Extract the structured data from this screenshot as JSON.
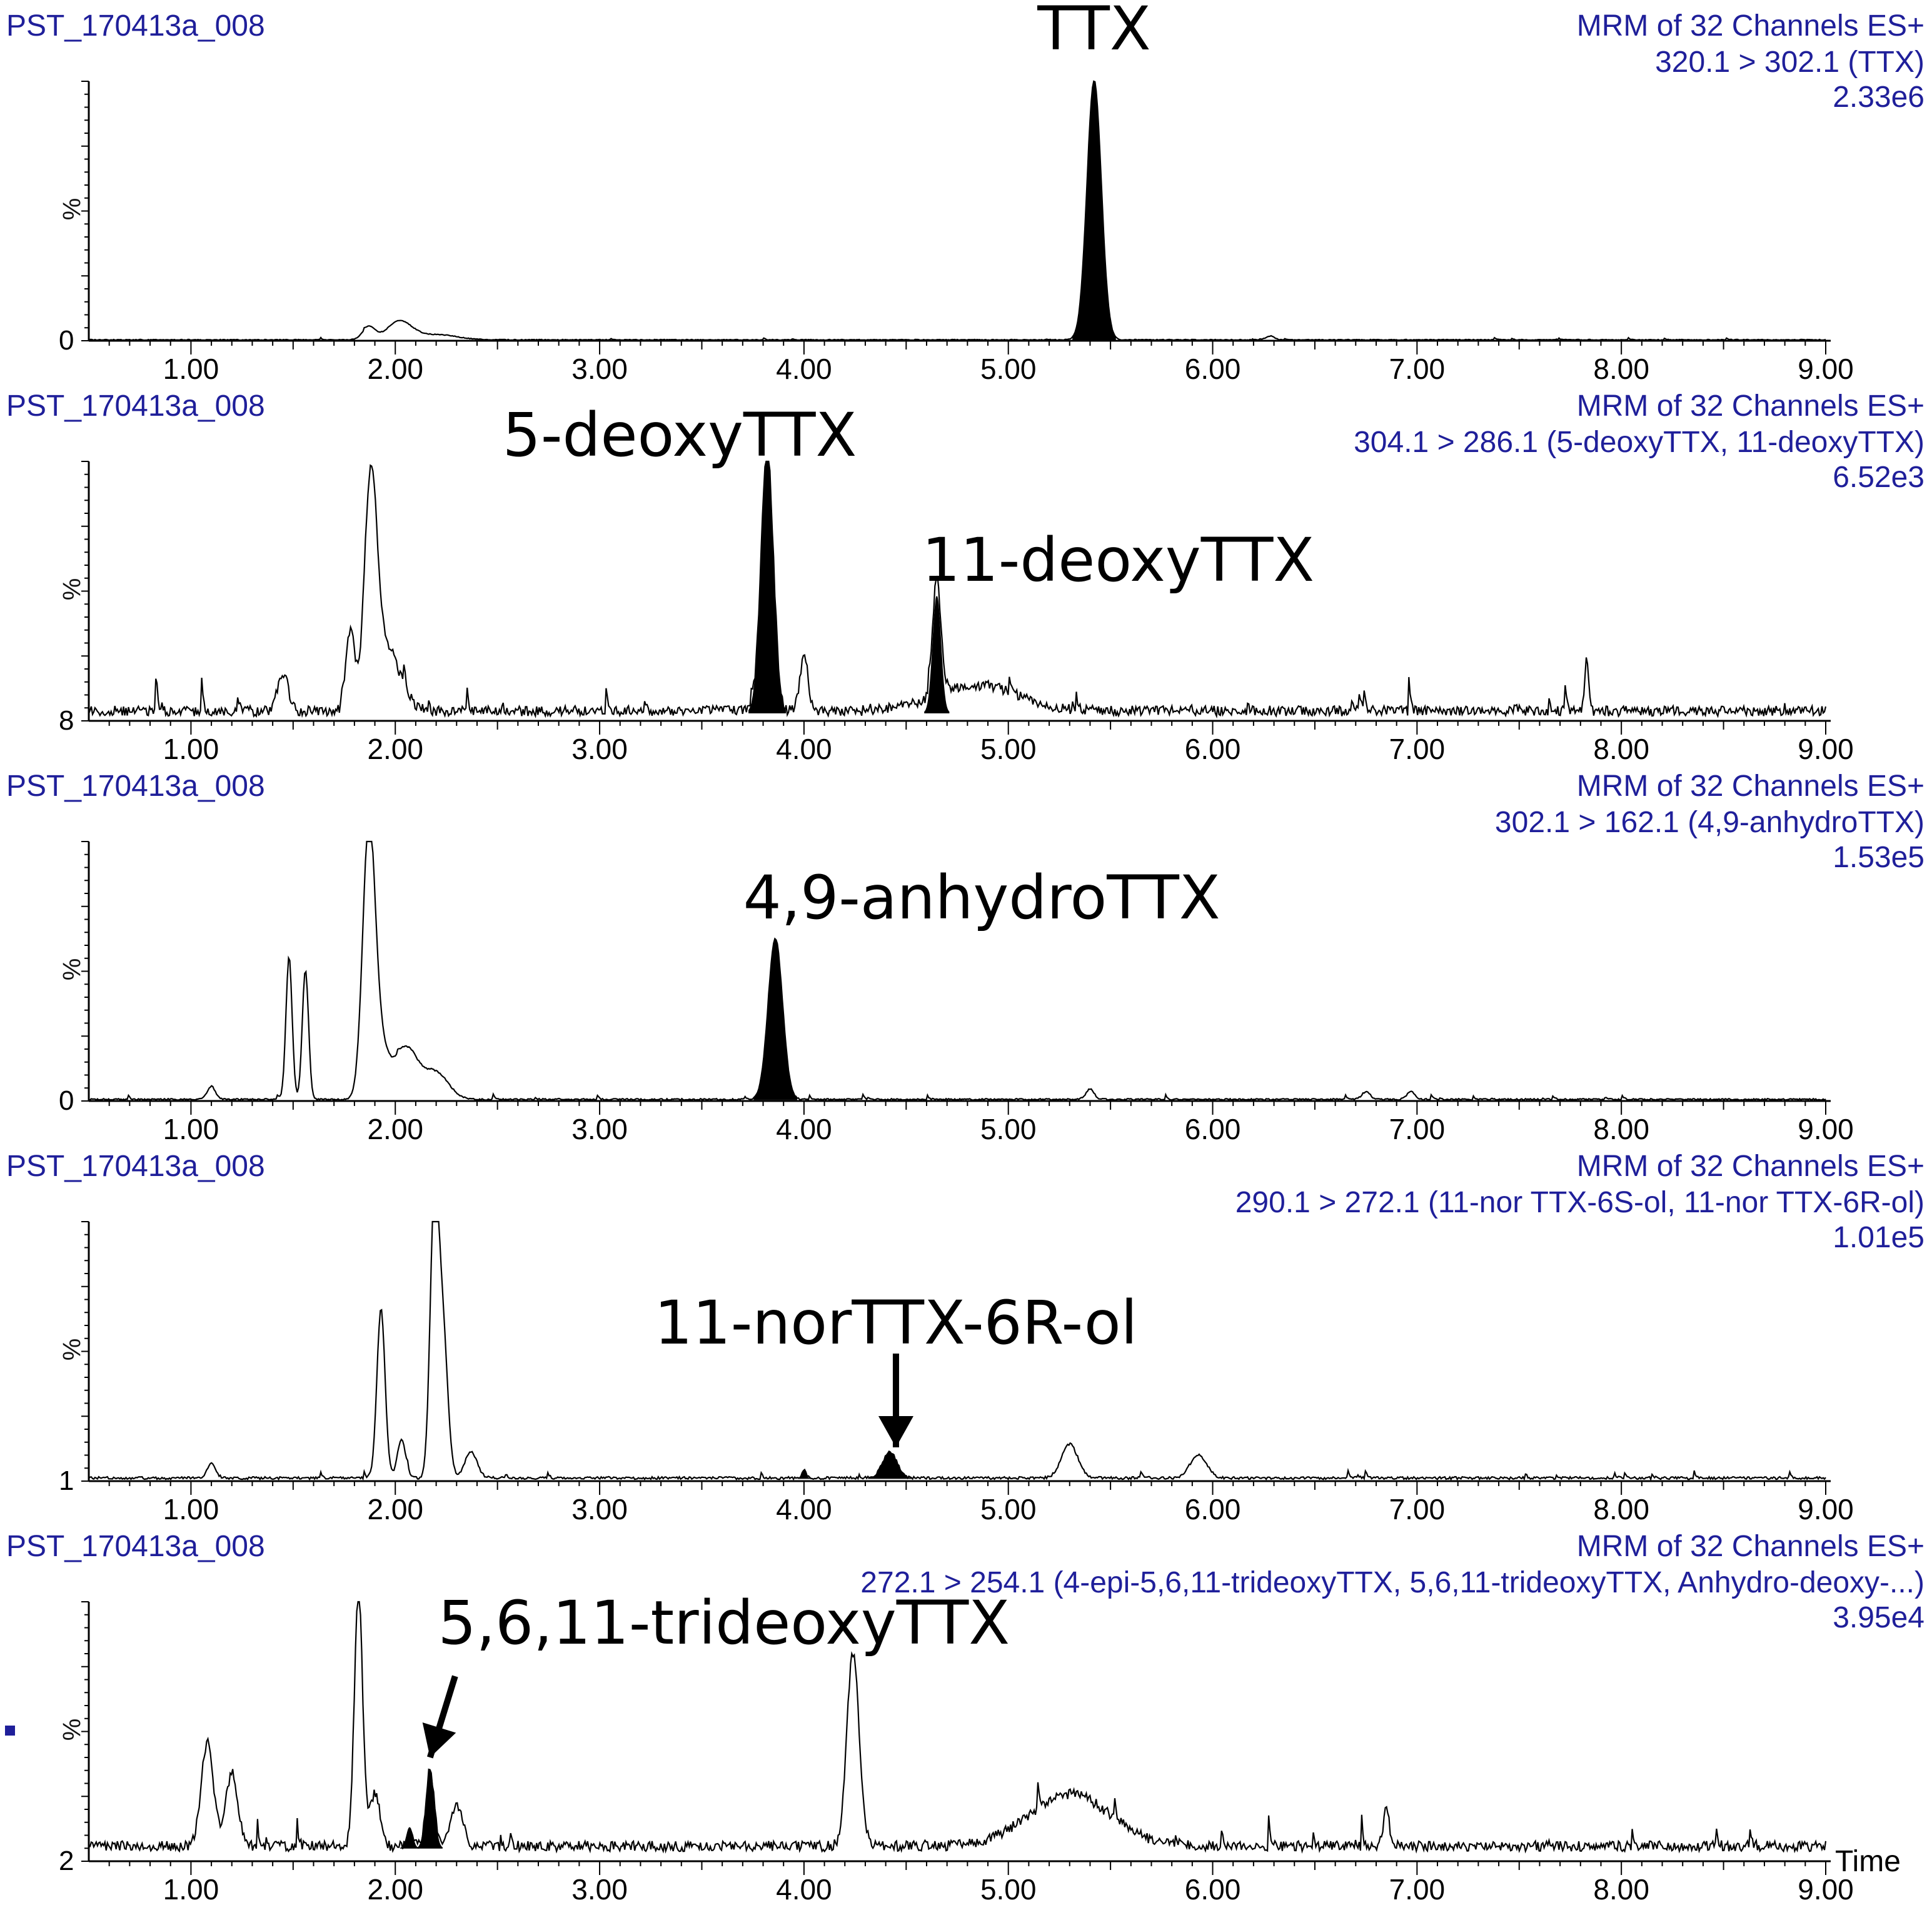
{
  "chart_data": [
    {
      "type": "line",
      "sample": "PST_170413a_008",
      "header": [
        "MRM of 32 Channels ES+",
        "320.1 > 302.1 (TTX)",
        "2.33e6"
      ],
      "ylabel": "%",
      "ymin_label": "0",
      "xlim": [
        0.5,
        9.0
      ],
      "xticks": [
        "1.00",
        "2.00",
        "3.00",
        "4.00",
        "5.00",
        "6.00",
        "7.00",
        "8.00",
        "9.00"
      ],
      "baseline": 0.3,
      "noise": 0.3,
      "peaks": [
        {
          "x": 5.42,
          "h": 100,
          "w": 0.035,
          "filled": true
        },
        {
          "x": 1.87,
          "h": 5,
          "w": 0.03
        },
        {
          "x": 2.02,
          "h": 7,
          "w": 0.06
        },
        {
          "x": 2.2,
          "h": 2,
          "w": 0.1
        },
        {
          "x": 6.28,
          "h": 1.5,
          "w": 0.02
        }
      ],
      "annotations": [
        {
          "text": "TTX",
          "x": 5.42
        }
      ]
    },
    {
      "type": "line",
      "sample": "PST_170413a_008",
      "header": [
        "MRM of 32 Channels ES+",
        "304.1 > 286.1 (5-deoxyTTX, 11-deoxyTTX)",
        "6.52e3"
      ],
      "ylabel": "%",
      "ymin_label": "8",
      "xlim": [
        0.5,
        9.0
      ],
      "xticks": [
        "1.00",
        "2.00",
        "3.00",
        "4.00",
        "5.00",
        "6.00",
        "7.00",
        "8.00",
        "9.00"
      ],
      "baseline": 3,
      "noise": 4,
      "peaks": [
        {
          "x": 3.82,
          "h": 100,
          "w": 0.03,
          "filled": true
        },
        {
          "x": 4.65,
          "h": 45,
          "w": 0.02,
          "filled": true
        },
        {
          "x": 1.88,
          "h": 80,
          "w": 0.03
        },
        {
          "x": 1.78,
          "h": 30,
          "w": 0.02
        },
        {
          "x": 1.95,
          "h": 25,
          "w": 0.07
        },
        {
          "x": 1.45,
          "h": 15,
          "w": 0.025
        },
        {
          "x": 4.0,
          "h": 20,
          "w": 0.02
        },
        {
          "x": 4.85,
          "h": 10,
          "w": 0.2
        },
        {
          "x": 7.83,
          "h": 20,
          "w": 0.01
        }
      ],
      "annotations": [
        {
          "text": "5-deoxyTTX",
          "x": 3.82
        },
        {
          "text": "11-deoxyTTX",
          "x": 4.65
        }
      ]
    },
    {
      "type": "line",
      "sample": "PST_170413a_008",
      "header": [
        "MRM of 32 Channels ES+",
        "302.1 > 162.1 (4,9-anhydroTTX)",
        "1.53e5"
      ],
      "ylabel": "%",
      "ymin_label": "0",
      "xlim": [
        0.5,
        9.0
      ],
      "xticks": [
        "1.00",
        "2.00",
        "3.00",
        "4.00",
        "5.00",
        "6.00",
        "7.00",
        "8.00",
        "9.00"
      ],
      "baseline": 0.5,
      "noise": 0.6,
      "peaks": [
        {
          "x": 3.86,
          "h": 62,
          "w": 0.035,
          "filled": true
        },
        {
          "x": 1.87,
          "h": 100,
          "w": 0.03
        },
        {
          "x": 1.48,
          "h": 55,
          "w": 0.015
        },
        {
          "x": 1.56,
          "h": 50,
          "w": 0.015
        },
        {
          "x": 1.92,
          "h": 20,
          "w": 0.04
        },
        {
          "x": 2.05,
          "h": 20,
          "w": 0.06
        },
        {
          "x": 2.2,
          "h": 10,
          "w": 0.06
        },
        {
          "x": 1.1,
          "h": 5,
          "w": 0.02
        },
        {
          "x": 5.4,
          "h": 4,
          "w": 0.02
        },
        {
          "x": 6.75,
          "h": 3,
          "w": 0.02
        },
        {
          "x": 6.97,
          "h": 3,
          "w": 0.02
        }
      ],
      "annotations": [
        {
          "text": "4,9-anhydroTTX",
          "x": 3.86
        }
      ]
    },
    {
      "type": "line",
      "sample": "PST_170413a_008",
      "header": [
        "MRM of 32 Channels ES+",
        "290.1 > 272.1 (11-nor TTX-6S-ol, 11-nor TTX-6R-ol)",
        "1.01e5"
      ],
      "ylabel": "%",
      "ymin_label": "1",
      "xlim": [
        0.5,
        9.0
      ],
      "xticks": [
        "1.00",
        "2.00",
        "3.00",
        "4.00",
        "5.00",
        "6.00",
        "7.00",
        "8.00",
        "9.00"
      ],
      "baseline": 1,
      "noise": 1,
      "peaks": [
        {
          "x": 4.42,
          "h": 10,
          "w": 0.035,
          "filled": true
        },
        {
          "x": 4.0,
          "h": 3,
          "w": 0.01,
          "filled": true
        },
        {
          "x": 2.19,
          "h": 100,
          "w": 0.02
        },
        {
          "x": 2.23,
          "h": 60,
          "w": 0.025
        },
        {
          "x": 1.93,
          "h": 65,
          "w": 0.02
        },
        {
          "x": 2.03,
          "h": 15,
          "w": 0.02
        },
        {
          "x": 2.37,
          "h": 10,
          "w": 0.03
        },
        {
          "x": 1.1,
          "h": 6,
          "w": 0.02
        },
        {
          "x": 5.3,
          "h": 13,
          "w": 0.04
        },
        {
          "x": 5.93,
          "h": 9,
          "w": 0.04
        }
      ],
      "arrows": [
        {
          "x": 4.45,
          "ytip": 13
        }
      ],
      "annotations": [
        {
          "text": "11-norTTX-6R-ol",
          "x": 4.45
        }
      ]
    },
    {
      "type": "line",
      "sample": "PST_170413a_008",
      "header": [
        "MRM of 32 Channels ES+",
        "272.1 > 254.1 (4-epi-5,6,11-trideoxyTTX, 5,6,11-trideoxyTTX, Anhydro-deoxy-...)",
        "3.95e4"
      ],
      "ylabel": "%",
      "ymin_label": "2",
      "xlabel": "Time",
      "xlim": [
        0.5,
        9.0
      ],
      "xticks": [
        "1.00",
        "2.00",
        "3.00",
        "4.00",
        "5.00",
        "6.00",
        "7.00",
        "8.00",
        "9.00"
      ],
      "baseline": 5,
      "noise": 4,
      "peaks": [
        {
          "x": 2.17,
          "h": 30,
          "w": 0.02,
          "filled": true
        },
        {
          "x": 2.07,
          "h": 8,
          "w": 0.015,
          "filled": true
        },
        {
          "x": 1.82,
          "h": 100,
          "w": 0.02
        },
        {
          "x": 4.24,
          "h": 75,
          "w": 0.03
        },
        {
          "x": 1.08,
          "h": 40,
          "w": 0.03
        },
        {
          "x": 1.2,
          "h": 28,
          "w": 0.03
        },
        {
          "x": 1.9,
          "h": 20,
          "w": 0.025
        },
        {
          "x": 5.3,
          "h": 20,
          "w": 0.2
        },
        {
          "x": 2.3,
          "h": 15,
          "w": 0.03
        },
        {
          "x": 6.85,
          "h": 14,
          "w": 0.015
        }
      ],
      "arrows": [
        {
          "x": 2.17,
          "ytip": 40
        }
      ],
      "annotations": [
        {
          "text": "5,6,11-trideoxyTTX",
          "x": 2.85
        }
      ]
    }
  ]
}
